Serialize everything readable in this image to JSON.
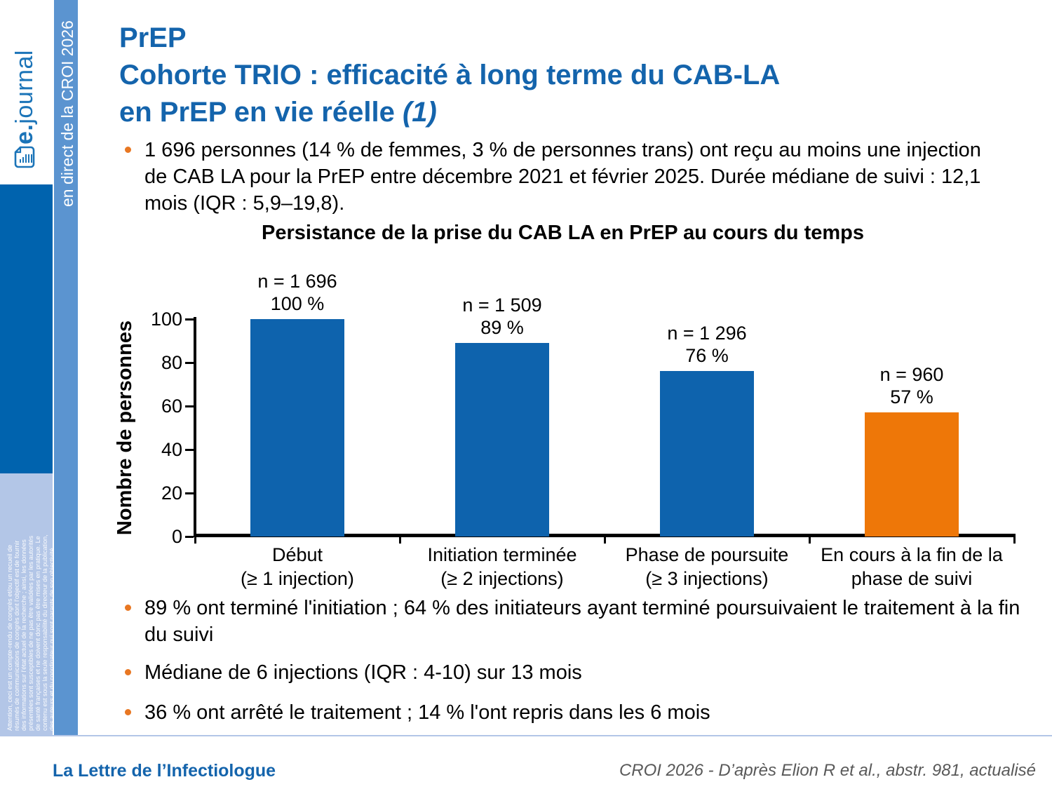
{
  "sidebar": {
    "logo_bold": "e.",
    "logo_rest": "journal",
    "banner_text": "en direct de la CROI 2026",
    "disclaimer": "Attention, ceci est un compte-rendu de congrès et/ou un recueil de\nrésumés de communications de congrès dont l'objectif est de fournir\ndes informations sur l'état actuel de la recherche ; ainsi, les données\nprésentées sont susceptibles de ne pas être validées par les autorités\nde santé françaises et ne doivent donc pas être mises en pratique. Le\ncontenu est sous la seule responsabilité du directeur de la publication,\ndes auteurs et du coordinateur qui sont garants de son objectivité."
  },
  "title": {
    "line1": "PrEP",
    "line2": "Cohorte TRIO : efficacité à long terme du CAB-LA",
    "line3": "en PrEP en vie réelle",
    "line3_note": "(1)"
  },
  "intro_bullet": "1 696 personnes (14 % de femmes, 3 % de personnes trans) ont reçu au moins une injection de CAB LA pour la PrEP entre décembre 2021 et février 2025. Durée médiane de suivi : 12,1 mois (IQR : 5,9–19,8).",
  "chart_data": {
    "type": "bar",
    "title": "Persistance de la prise du CAB LA en PrEP au cours du temps",
    "ylabel": "Nombre de personnes",
    "xlabel": "",
    "ylim": [
      0,
      100
    ],
    "yticks": [
      0,
      20,
      40,
      60,
      80,
      100
    ],
    "grid": false,
    "legend": "none",
    "categories": [
      [
        "Début",
        "(≥ 1 injection)"
      ],
      [
        "Initiation terminée",
        "(≥ 2 injections)"
      ],
      [
        "Phase de poursuite",
        "(≥ 3 injections)"
      ],
      [
        "En cours à la fin de la",
        "phase de suivi"
      ]
    ],
    "values": [
      100,
      89,
      76,
      57
    ],
    "bar_labels": [
      [
        "n = 1 696",
        "100 %"
      ],
      [
        "n = 1 509",
        "89 %"
      ],
      [
        "n = 1 296",
        "76 %"
      ],
      [
        "n = 960",
        "57 %"
      ]
    ],
    "bar_colors": [
      "#0e63ad",
      "#0e63ad",
      "#0e63ad",
      "#ee7708"
    ]
  },
  "bullets_bottom": [
    "89 % ont terminé l'initiation ; 64 % des initiateurs ayant terminé poursuivaient le traitement à la fin du suivi",
    "Médiane de 6 injections (IQR : 4-10) sur 13 mois",
    "36 % ont arrêté le traitement ; 14 % l'ont repris dans les 6 mois"
  ],
  "footer": {
    "left": "La Lettre de l’Infectiologue",
    "right": "CROI 2026 - D’après Elion R et al., abstr. 981, actualisé"
  },
  "colors": {
    "brand_blue": "#1464ac",
    "bar_blue": "#0e63ad",
    "accent_orange": "#ee7708",
    "bullet_orange": "#e87722",
    "sidebar_dark_blue": "#0063ae",
    "banner_blue": "#5b94d0",
    "panel_light_blue": "#b3c6e7",
    "footer_gray": "#595959"
  }
}
